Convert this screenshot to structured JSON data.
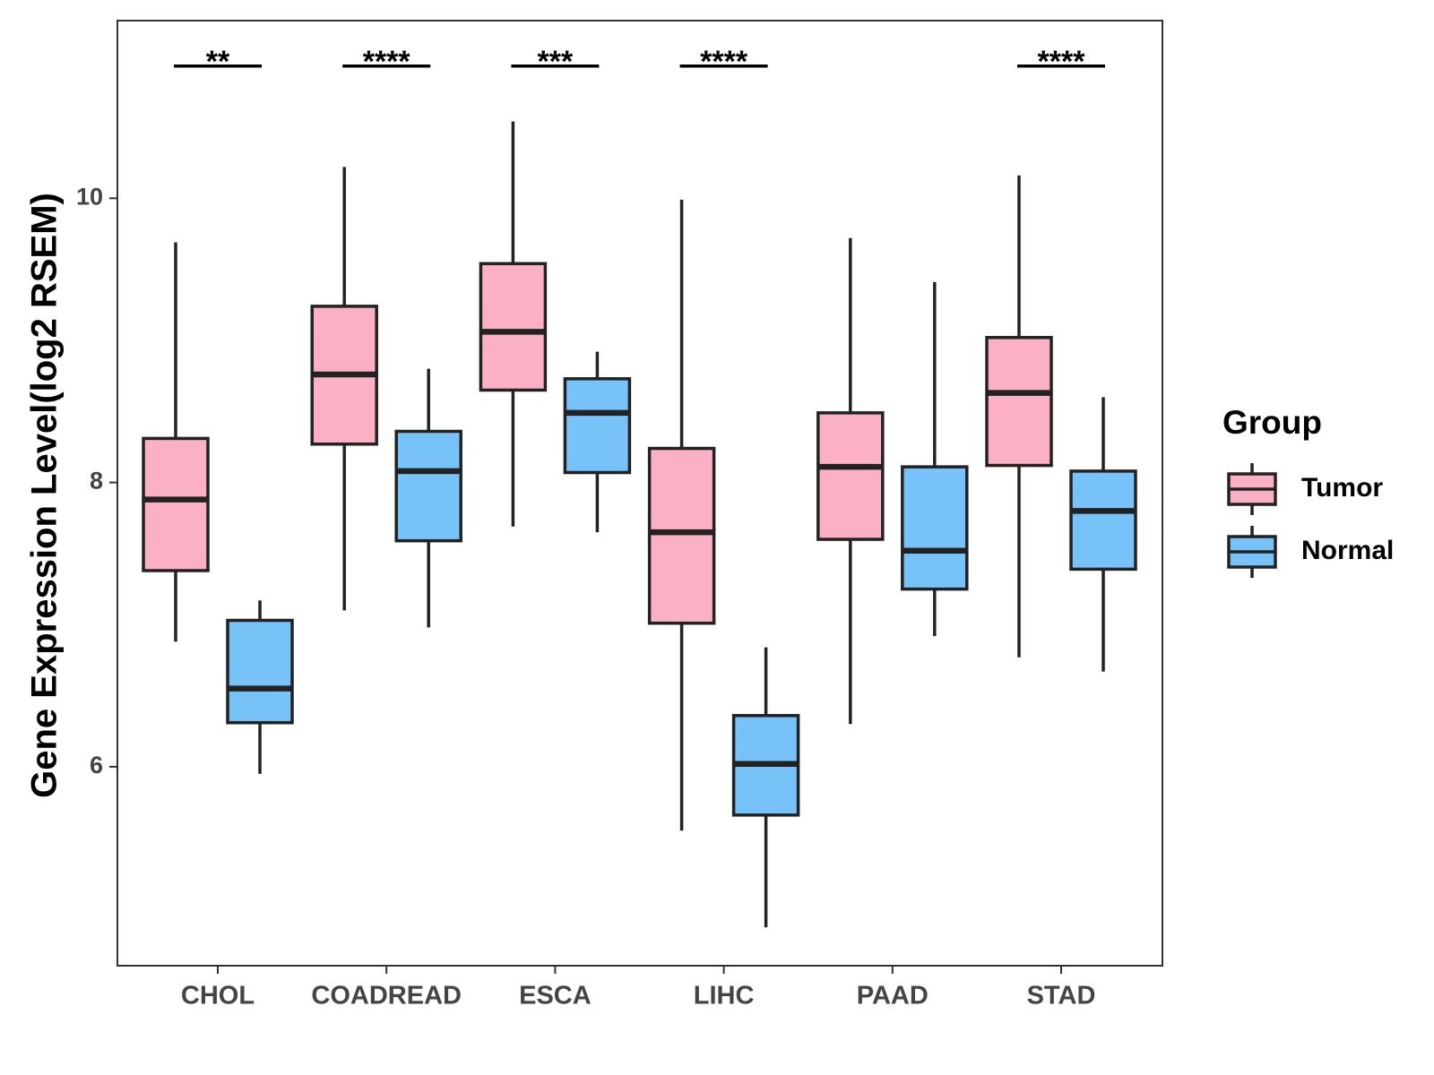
{
  "chart_data": {
    "type": "boxplot",
    "title": "",
    "xlabel": "",
    "ylabel": "Gene Expression Level(log2 RSEM)",
    "ylim": [
      4.6,
      11.25
    ],
    "yticks": [
      6,
      8,
      10
    ],
    "ytick_labels": [
      "6",
      "8",
      "10"
    ],
    "categories": [
      "CHOL",
      "COADREAD",
      "ESCA",
      "LIHC",
      "PAAD",
      "STAD"
    ],
    "legend": {
      "title": "Group",
      "position": "right"
    },
    "series": [
      {
        "name": "Tumor",
        "color": "#FBB1C3",
        "boxes": [
          {
            "category": "CHOL",
            "whisker_low": 6.88,
            "q1": 7.38,
            "median": 7.88,
            "q3": 8.31,
            "whisker_high": 9.69
          },
          {
            "category": "COADREAD",
            "whisker_low": 7.1,
            "q1": 8.27,
            "median": 8.76,
            "q3": 9.24,
            "whisker_high": 10.22
          },
          {
            "category": "ESCA",
            "whisker_low": 7.69,
            "q1": 8.65,
            "median": 9.06,
            "q3": 9.54,
            "whisker_high": 10.54
          },
          {
            "category": "LIHC",
            "whisker_low": 5.55,
            "q1": 7.01,
            "median": 7.65,
            "q3": 8.24,
            "whisker_high": 9.99
          },
          {
            "category": "PAAD",
            "whisker_low": 6.3,
            "q1": 7.6,
            "median": 8.11,
            "q3": 8.49,
            "whisker_high": 9.72
          },
          {
            "category": "STAD",
            "whisker_low": 6.77,
            "q1": 8.12,
            "median": 8.63,
            "q3": 9.02,
            "whisker_high": 10.16
          }
        ]
      },
      {
        "name": "Normal",
        "color": "#78C2FA",
        "boxes": [
          {
            "category": "CHOL",
            "whisker_low": 5.95,
            "q1": 6.31,
            "median": 6.55,
            "q3": 7.03,
            "whisker_high": 7.17
          },
          {
            "category": "COADREAD",
            "whisker_low": 6.98,
            "q1": 7.59,
            "median": 8.08,
            "q3": 8.36,
            "whisker_high": 8.8
          },
          {
            "category": "ESCA",
            "whisker_low": 7.65,
            "q1": 8.07,
            "median": 8.49,
            "q3": 8.73,
            "whisker_high": 8.92
          },
          {
            "category": "LIHC",
            "whisker_low": 4.87,
            "q1": 5.66,
            "median": 6.02,
            "q3": 6.36,
            "whisker_high": 6.84
          },
          {
            "category": "PAAD",
            "whisker_low": 6.92,
            "q1": 7.25,
            "median": 7.52,
            "q3": 8.11,
            "whisker_high": 9.41
          },
          {
            "category": "STAD",
            "whisker_low": 6.67,
            "q1": 7.39,
            "median": 7.8,
            "q3": 8.08,
            "whisker_high": 8.6
          }
        ]
      }
    ],
    "significance": [
      {
        "category": "CHOL",
        "label": "**"
      },
      {
        "category": "COADREAD",
        "label": "****"
      },
      {
        "category": "ESCA",
        "label": "***"
      },
      {
        "category": "LIHC",
        "label": "****"
      },
      {
        "category": "PAAD",
        "label": ""
      },
      {
        "category": "STAD",
        "label": "****"
      }
    ],
    "significance_level": 10.93,
    "grid": false
  }
}
